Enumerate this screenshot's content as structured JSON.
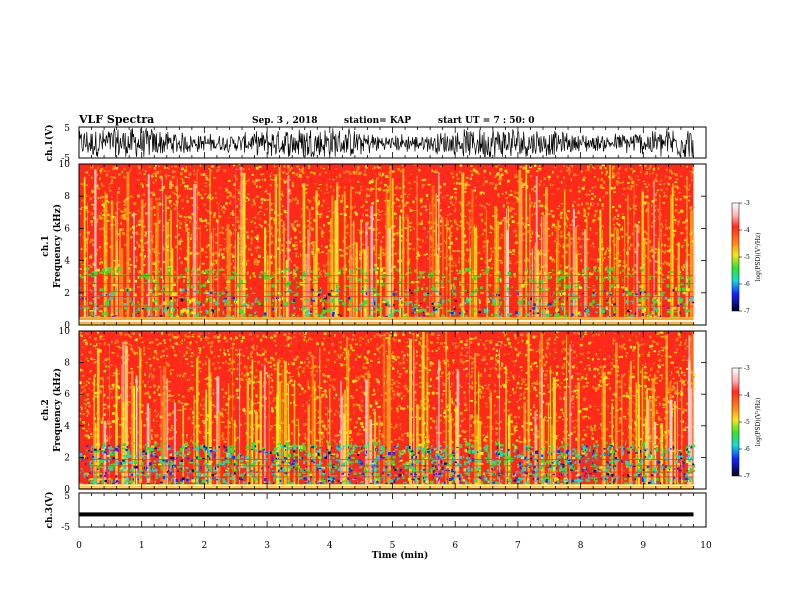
{
  "header": {
    "title": "VLF Spectra",
    "date": "Sep. 3 , 2018",
    "station": "station= KAP",
    "start": "start  UT =   7 : 50: 0"
  },
  "colors": {
    "red": "#ff2a1a",
    "orange": "#ff8c1a",
    "yellow": "#f5e61e",
    "green": "#38e030",
    "cyan": "#18d8d8",
    "blue": "#1428ff",
    "navy": "#000a6e",
    "pink": "#ffd2d2",
    "trace": "#000000"
  },
  "chart_data": [
    {
      "type": "line",
      "ylabel": "ch.1(V)",
      "ylim": [
        -5,
        5
      ],
      "yticks": [
        "5",
        "-5"
      ],
      "xlim": [
        0,
        10
      ],
      "description_values": "noisy waveform between about -2.5 and 2.5 V"
    },
    {
      "type": "heatmap",
      "ylabel": "ch.1\nFrequency  (kHz)",
      "ylim": [
        0,
        10
      ],
      "yticks": [
        "0",
        "2",
        "4",
        "6",
        "8",
        "10"
      ],
      "colorbar": {
        "label": "log(PSD)(V²/Hz)",
        "ticks": [
          "-3",
          "-4",
          "-5",
          "-6",
          "-7"
        ],
        "range": [
          -7,
          -3
        ]
      }
    },
    {
      "type": "heatmap",
      "ylabel": "ch.2\nFrequency  (kHz)",
      "ylim": [
        0,
        10
      ],
      "yticks": [
        "0",
        "2",
        "4",
        "6",
        "8",
        "10"
      ],
      "colorbar": {
        "label": "log(PSD)(V²/Hz)",
        "ticks": [
          "-3",
          "-4",
          "-5",
          "-6",
          "-7"
        ],
        "range": [
          -7,
          -3
        ]
      }
    },
    {
      "type": "line",
      "ylabel": "ch.3(V)",
      "ylim": [
        -5,
        5
      ],
      "yticks": [
        "5",
        "-5"
      ],
      "level": -1.3
    }
  ],
  "xaxis": {
    "label": "Time  (min)",
    "ticks": [
      "0",
      "1",
      "2",
      "3",
      "4",
      "5",
      "6",
      "7",
      "8",
      "9",
      "10"
    ],
    "range": [
      0,
      10
    ],
    "data_end": 9.8
  }
}
